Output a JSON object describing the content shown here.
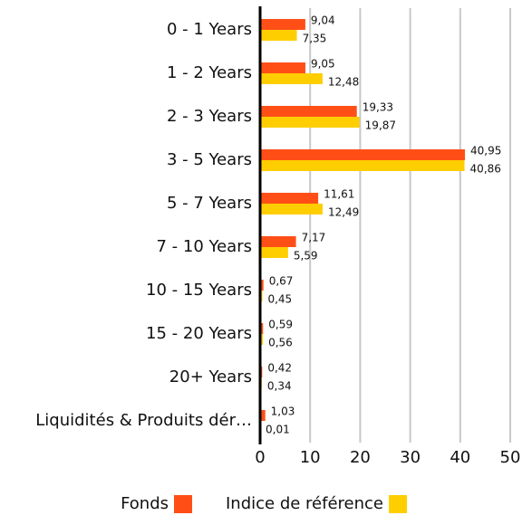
{
  "chart_data": {
    "type": "bar",
    "orientation": "horizontal",
    "categories": [
      "0 - 1 Years",
      "1 - 2 Years",
      "2 - 3 Years",
      "3 - 5 Years",
      "5 - 7 Years",
      "7 - 10 Years",
      "10 - 15 Years",
      "15 - 20 Years",
      "20+ Years",
      "Liquidités & Produits dér…"
    ],
    "series": [
      {
        "name": "Fonds",
        "color": "#ff4f17",
        "values": [
          9.04,
          9.05,
          19.33,
          40.95,
          11.61,
          7.17,
          0.67,
          0.59,
          0.42,
          1.03
        ],
        "value_labels": [
          "9,04",
          "9,05",
          "19,33",
          "40,95",
          "11,61",
          "7,17",
          "0,67",
          "0,59",
          "0,42",
          "1,03"
        ]
      },
      {
        "name": "Indice de référence",
        "color": "#ffce00",
        "values": [
          7.35,
          12.48,
          19.87,
          40.86,
          12.49,
          5.59,
          0.45,
          0.56,
          0.34,
          0.01
        ],
        "value_labels": [
          "7,35",
          "12,48",
          "19,87",
          "40,86",
          "12,49",
          "5,59",
          "0,45",
          "0,56",
          "0,34",
          "0,01"
        ]
      }
    ],
    "xlim": [
      0,
      50
    ],
    "xticks": [
      0,
      10,
      20,
      30,
      40,
      50
    ],
    "grid": true
  }
}
